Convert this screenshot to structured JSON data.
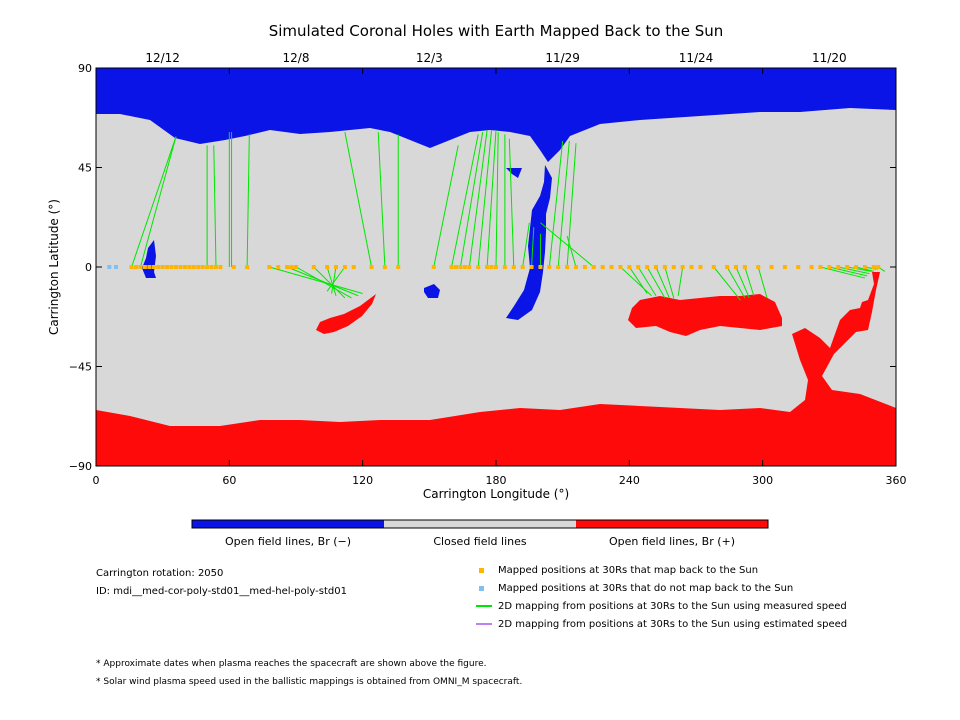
{
  "chart_data": {
    "type": "heatmap",
    "title": "Simulated Coronal Holes with Earth Mapped Back to the Sun",
    "xlabel": "Carrington Longitude (°)",
    "ylabel": "Carrington Latitude (°)",
    "xlim": [
      0,
      360
    ],
    "ylim": [
      -90,
      90
    ],
    "x_ticks": [
      0,
      60,
      120,
      180,
      240,
      300,
      360
    ],
    "y_ticks": [
      90,
      45,
      0,
      -45,
      -90
    ],
    "y_tick_labels": [
      "90",
      "45",
      "0",
      "−45",
      "−90"
    ],
    "top_dates": [
      {
        "label": "12/12",
        "lon": 30
      },
      {
        "label": "12/8",
        "lon": 90
      },
      {
        "label": "12/3",
        "lon": 150
      },
      {
        "label": "11/29",
        "lon": 210
      },
      {
        "label": "11/24",
        "lon": 270
      },
      {
        "label": "11/20",
        "lon": 330
      }
    ],
    "colorbar": [
      {
        "label": "Open field lines, Br (−)",
        "color": "#0a14e6"
      },
      {
        "label": "Closed field lines",
        "color": "#d8d8d8"
      },
      {
        "label": "Open field lines, Br (+)",
        "color": "#ff0a0a"
      }
    ],
    "mapped_points_lat": 0,
    "mapped_points_lon": [
      16,
      18,
      20,
      22,
      24,
      26,
      28,
      30,
      32,
      34,
      36,
      38,
      40,
      42,
      44,
      46,
      48,
      50,
      52,
      54,
      56,
      62,
      68,
      78,
      82,
      86,
      88,
      90,
      98,
      104,
      108,
      112,
      116,
      124,
      130,
      136,
      152,
      160,
      162,
      164,
      166,
      168,
      172,
      176,
      178,
      180,
      184,
      188,
      192,
      196,
      200,
      204,
      208,
      212,
      216,
      220,
      224,
      228,
      232,
      236,
      240,
      244,
      248,
      252,
      256,
      260,
      264,
      268,
      272,
      278,
      284,
      288,
      292,
      298,
      304,
      310,
      316,
      322,
      326,
      330,
      334,
      338,
      342,
      346,
      350,
      352
    ],
    "unmapped_points_lon": [
      6,
      9
    ],
    "field_lines": [
      [
        16,
        0,
        36,
        59
      ],
      [
        20,
        0,
        36,
        59
      ],
      [
        50,
        0,
        50,
        55
      ],
      [
        54,
        0,
        53,
        55
      ],
      [
        60,
        0,
        60,
        61
      ],
      [
        61,
        0,
        61,
        61
      ],
      [
        68,
        0,
        69,
        60
      ],
      [
        78,
        0,
        120,
        -12
      ],
      [
        86,
        0,
        118,
        -13
      ],
      [
        90,
        0,
        115,
        -14
      ],
      [
        98,
        0,
        112,
        -14
      ],
      [
        104,
        0,
        108,
        -13
      ],
      [
        108,
        0,
        106,
        -12
      ],
      [
        112,
        0,
        104,
        -11
      ],
      [
        124,
        0,
        112,
        61
      ],
      [
        130,
        0,
        127,
        61
      ],
      [
        136,
        0,
        136,
        60
      ],
      [
        152,
        0,
        163,
        55
      ],
      [
        160,
        0,
        172,
        60
      ],
      [
        164,
        0,
        174,
        61
      ],
      [
        168,
        0,
        176,
        62
      ],
      [
        172,
        0,
        178,
        62
      ],
      [
        176,
        0,
        180,
        62
      ],
      [
        180,
        0,
        181,
        61
      ],
      [
        184,
        0,
        184,
        60
      ],
      [
        188,
        0,
        186,
        58
      ],
      [
        192,
        0,
        195,
        20
      ],
      [
        196,
        0,
        197,
        18
      ],
      [
        200,
        0,
        200,
        15
      ],
      [
        204,
        0,
        210,
        57
      ],
      [
        208,
        0,
        213,
        57
      ],
      [
        212,
        0,
        216,
        56
      ],
      [
        216,
        0,
        212,
        14
      ],
      [
        224,
        0,
        200,
        20
      ],
      [
        236,
        0,
        250,
        -13
      ],
      [
        240,
        0,
        248,
        -12
      ],
      [
        244,
        0,
        252,
        -13
      ],
      [
        248,
        0,
        256,
        -14
      ],
      [
        252,
        0,
        258,
        -14
      ],
      [
        256,
        0,
        260,
        -14
      ],
      [
        264,
        0,
        262,
        -13
      ],
      [
        278,
        0,
        290,
        -15
      ],
      [
        284,
        0,
        292,
        -14
      ],
      [
        288,
        0,
        294,
        -14
      ],
      [
        292,
        0,
        296,
        -13
      ],
      [
        298,
        0,
        302,
        -14
      ],
      [
        326,
        0,
        346,
        -5
      ],
      [
        330,
        0,
        347,
        -4
      ],
      [
        334,
        0,
        348,
        -3
      ],
      [
        338,
        0,
        349,
        -2
      ],
      [
        342,
        0,
        350,
        -2
      ],
      [
        346,
        0,
        351,
        -1
      ],
      [
        350,
        0,
        352,
        -1
      ],
      [
        352,
        0,
        355,
        -2
      ]
    ],
    "field_line_color": "#00e600",
    "mapped_color": "#ffb400",
    "unmapped_color": "#80c0f0",
    "estimated_color": "#c080f0"
  },
  "legend": {
    "rotation": "Carrington rotation: 2050",
    "id": "ID: mdi__med-cor-poly-std01__med-hel-poly-std01",
    "items": [
      {
        "label": "Mapped positions at 30Rs that map back to the Sun",
        "color": "#ffb400",
        "kind": "square"
      },
      {
        "label": "Mapped positions at 30Rs that do not map back to the Sun",
        "color": "#80c0f0",
        "kind": "square"
      },
      {
        "label": "2D mapping from positions at 30Rs to the Sun using measured speed",
        "color": "#00e600",
        "kind": "line"
      },
      {
        "label": "2D mapping from positions at 30Rs to the Sun using estimated speed",
        "color": "#c080f0",
        "kind": "line"
      }
    ]
  },
  "notes": [
    "* Approximate dates when plasma reaches the spacecraft are shown above the figure.",
    "* Solar wind plasma speed used in the ballistic mappings is obtained from OMNI_M spacecraft."
  ]
}
